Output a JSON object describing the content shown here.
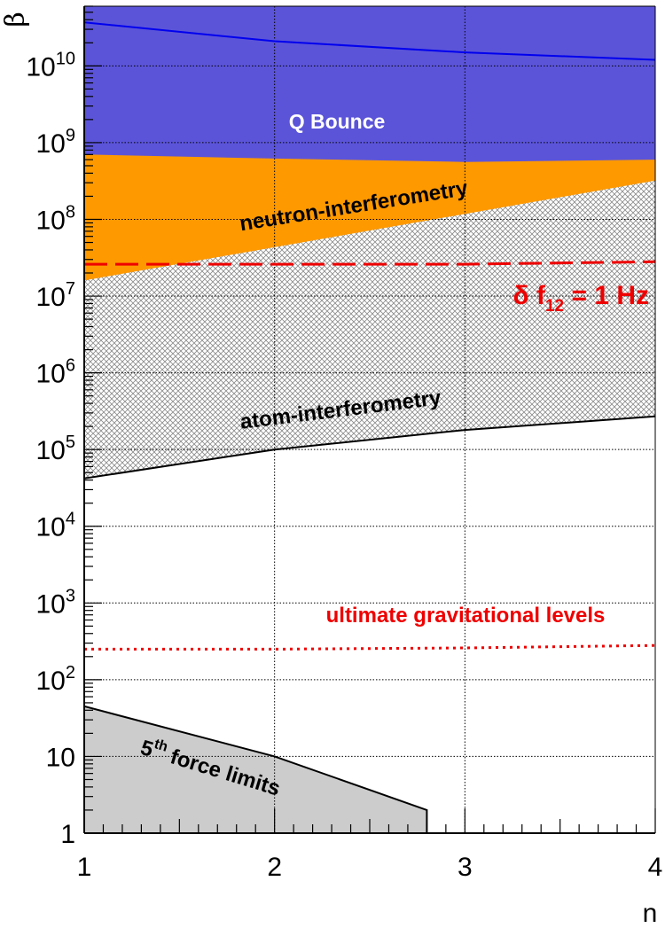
{
  "chart_data": {
    "type": "area",
    "xlabel": "n",
    "ylabel": "β",
    "xlim": [
      1,
      4
    ],
    "ylim": [
      1,
      60000000000
    ],
    "yscale": "log",
    "grid": true,
    "x_ticks": [
      1,
      2,
      3,
      4
    ],
    "x_tick_labels": [
      "1",
      "2",
      "3",
      "4"
    ],
    "y_ticks": [
      {
        "value": 1,
        "base": "1",
        "exp": ""
      },
      {
        "value": 10,
        "base": "10",
        "exp": ""
      },
      {
        "value": 100,
        "base": "10",
        "exp": "2"
      },
      {
        "value": 1000,
        "base": "10",
        "exp": "3"
      },
      {
        "value": 10000,
        "base": "10",
        "exp": "4"
      },
      {
        "value": 100000,
        "base": "10",
        "exp": "5"
      },
      {
        "value": 1000000,
        "base": "10",
        "exp": "6"
      },
      {
        "value": 10000000,
        "base": "10",
        "exp": "7"
      },
      {
        "value": 100000000,
        "base": "10",
        "exp": "8"
      },
      {
        "value": 1000000000,
        "base": "10",
        "exp": "9"
      },
      {
        "value": 10000000000,
        "base": "10",
        "exp": "10"
      }
    ],
    "regions": [
      {
        "name": "Q Bounce",
        "color": "#5b54d9",
        "n": [
          1,
          2,
          3,
          4
        ],
        "lower": [
          700000000,
          620000000,
          560000000,
          600000000
        ],
        "upper": "top"
      },
      {
        "name": "neutron-interferometry",
        "color": "#ff9900",
        "n": [
          1,
          4
        ],
        "lower": [
          16000000,
          320000000
        ],
        "upper_from": "Q Bounce"
      },
      {
        "name": "atom-interferometry",
        "color": "hatched",
        "n": [
          1,
          2,
          3,
          4
        ],
        "lower": [
          42000,
          100000,
          180000,
          270000
        ]
      },
      {
        "name": "5th force limits",
        "color": "#cccccc",
        "n": [
          1,
          2,
          2.8
        ],
        "lower": [
          45,
          10,
          2
        ]
      }
    ],
    "series": [
      {
        "name": "Q Bounce",
        "color": "#0000ee",
        "style": "solid",
        "n": [
          1,
          2,
          3,
          4
        ],
        "beta": [
          37000000000,
          21000000000,
          15000000000,
          12000000000
        ]
      },
      {
        "name": "δ f12 = 1 Hz",
        "color": "#ee0000",
        "style": "dashed",
        "n": [
          1,
          2,
          3,
          4
        ],
        "beta": [
          26000000,
          26000000,
          26000000,
          28000000
        ]
      },
      {
        "name": "ultimate gravitational levels",
        "color": "#ee0000",
        "style": "dotted",
        "n": [
          1,
          2,
          3,
          4
        ],
        "beta": [
          250,
          250,
          260,
          280
        ]
      },
      {
        "name": "atom-interferometry",
        "color": "#000000",
        "style": "solid",
        "n": [
          1,
          2,
          3,
          4
        ],
        "beta": [
          42000,
          100000,
          180000,
          270000
        ]
      },
      {
        "name": "5th force limits",
        "color": "#000000",
        "style": "solid",
        "n": [
          1,
          2,
          2.8,
          2.8
        ],
        "beta": [
          45,
          10,
          2,
          1
        ]
      }
    ],
    "annotations": {
      "q_bounce": "Q Bounce",
      "neutron": "neutron-interferometry",
      "atom": "atom-interferometry",
      "gravity": "ultimate gravitational levels",
      "delta_f_prefix": "δ f",
      "delta_f_sub": "12",
      "delta_f_suffix": " = 1 Hz",
      "fifth_base": "5",
      "fifth_sup": "th",
      "fifth_rest": " force limits"
    }
  },
  "colors": {
    "q_bounce": "#5b54d9",
    "neutron": "#ff9900",
    "fifth_force": "#cccccc",
    "red": "#ee0000",
    "blue": "#0000ee"
  }
}
